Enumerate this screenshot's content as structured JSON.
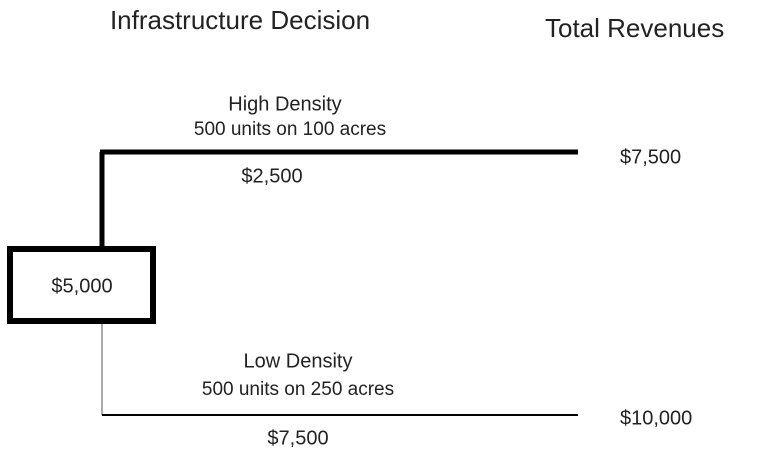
{
  "header": {
    "title": "Infrastructure Decision",
    "column_title": "Total Revenues"
  },
  "root": {
    "label": "$5,000"
  },
  "branches": [
    {
      "name": "High Density",
      "description": "500 units on 100 acres",
      "cost": "$2,500",
      "revenue": "$7,500"
    },
    {
      "name": "Low Density",
      "description": "500 units on 250 acres",
      "cost": "$7,500",
      "revenue": "$10,000"
    }
  ]
}
